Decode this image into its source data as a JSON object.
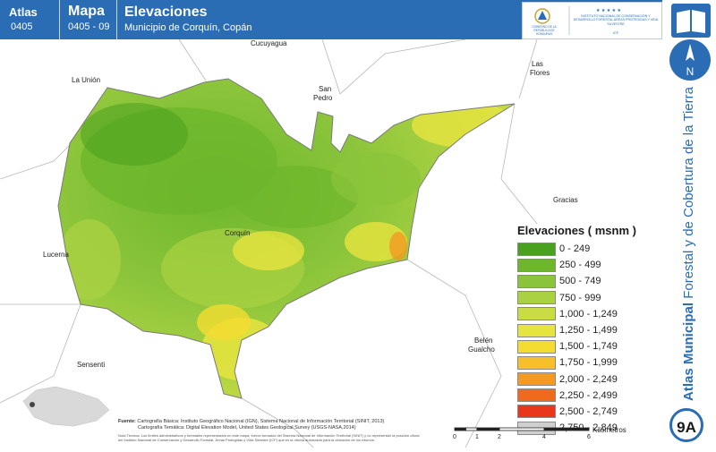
{
  "header": {
    "atlas_label": "Atlas",
    "atlas_code": "0405",
    "mapa_label": "Mapa",
    "mapa_code": "0405 - 09",
    "title": "Elevaciones",
    "subtitle": "Municipio de Corquín, Copán",
    "logo_left_text": "GOBIERNO DE LA REPÚBLICA DE HONDURAS",
    "logo_right_text": "INSTITUTO NACIONAL DE CONSERVACIÓN Y DESARROLLO FORESTAL ÁREAS PROTEGIDAS Y VIDA SILVESTRE",
    "logo_right_abbr": "ICF"
  },
  "side": {
    "north_label": "N",
    "vertical_title_bold": "Atlas Municipal",
    "vertical_title_rest": " Forestal y de Cobertura de la Tierra",
    "badge": "9A"
  },
  "places": {
    "cucuyagua": "Cucuyagua",
    "la_union": "La Unión",
    "las_flores_1": "Las",
    "las_flores_2": "Flores",
    "san_pedro_1": "San",
    "san_pedro_2": "Pedro",
    "gracias": "Gracias",
    "corquin": "Corquín",
    "lucerna": "Lucerna",
    "belen_1": "Belén",
    "belen_2": "Gualcho",
    "sensenti": "Sensenti"
  },
  "legend": {
    "title": "Elevaciones ( msnm )",
    "items": [
      {
        "label": "0 - 249",
        "color": "#4aa11f"
      },
      {
        "label": "250 - 499",
        "color": "#6db72c"
      },
      {
        "label": "500 - 749",
        "color": "#8ac43a"
      },
      {
        "label": "750 - 999",
        "color": "#a9d142"
      },
      {
        "label": "1,000 - 1,249",
        "color": "#c9dc43"
      },
      {
        "label": "1,250 - 1,499",
        "color": "#e6e43e"
      },
      {
        "label": "1,500 - 1,749",
        "color": "#f4dc31"
      },
      {
        "label": "1,750 - 1,999",
        "color": "#f7bf2a"
      },
      {
        "label": "2,000 - 2,249",
        "color": "#f49a22"
      },
      {
        "label": "2,250 - 2,499",
        "color": "#f06a1d"
      },
      {
        "label": "2,500 - 2,749",
        "color": "#e8371c"
      },
      {
        "label": "2,750 - 2,849",
        "color": "#cfcfcf"
      }
    ]
  },
  "source": {
    "label": "Fuente:",
    "line1": "Cartografía Básica: Instituto Geográfico Nacional (IGN), Sistema Nacional de Información Territorial (SINIT, 2013)",
    "line2": "Cartografía Temática: Digital Elevation Model, United States Geological Survey (USGS-NASA,2014)",
    "note": "Nota Técnica: Los límites administrativos y forestales representados en este mapa, fueron tomados del Sistema Nacional de Información Territorial (SINIT) y no representan la posición oficial del Instituto Nacional de Conservación y Desarrollo Forestal, Áreas Protegidas y Vida Silvestre (ICF) que es la oficina autorizada para la ubicación de los mismos."
  },
  "scale": {
    "ticks": [
      "0",
      "1",
      "2",
      "4",
      "6"
    ],
    "unit": "Kilómetros"
  }
}
